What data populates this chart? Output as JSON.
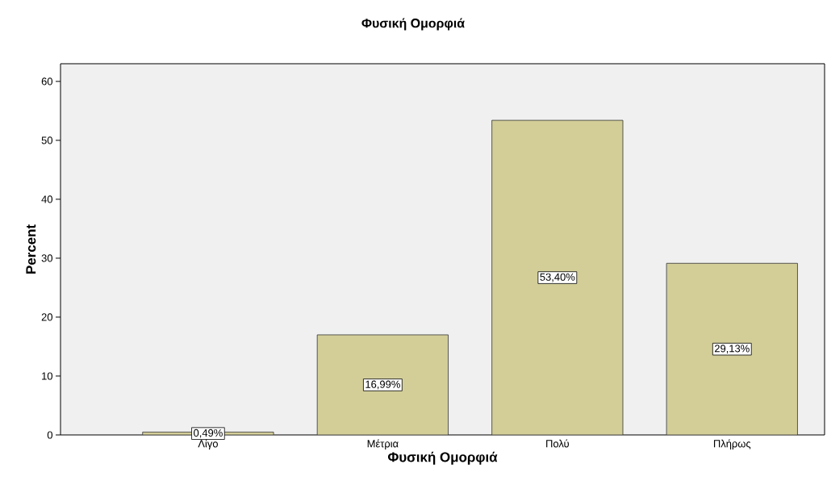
{
  "chart_data": {
    "type": "bar",
    "title": "Φυσική Ομορφιά",
    "xlabel": "Φυσική Ομορφιά",
    "ylabel": "Percent",
    "categories": [
      "Λίγο",
      "Μέτρια",
      "Πολύ",
      "Πλήρως"
    ],
    "values": [
      0.49,
      16.99,
      53.4,
      29.13
    ],
    "value_labels": [
      "0,49%",
      "16,99%",
      "53,40%",
      "29,13%"
    ],
    "color": "#d3ce98",
    "ylim": [
      0,
      63
    ],
    "yticks": [
      0,
      10,
      20,
      30,
      40,
      50,
      60
    ],
    "grid": false
  }
}
